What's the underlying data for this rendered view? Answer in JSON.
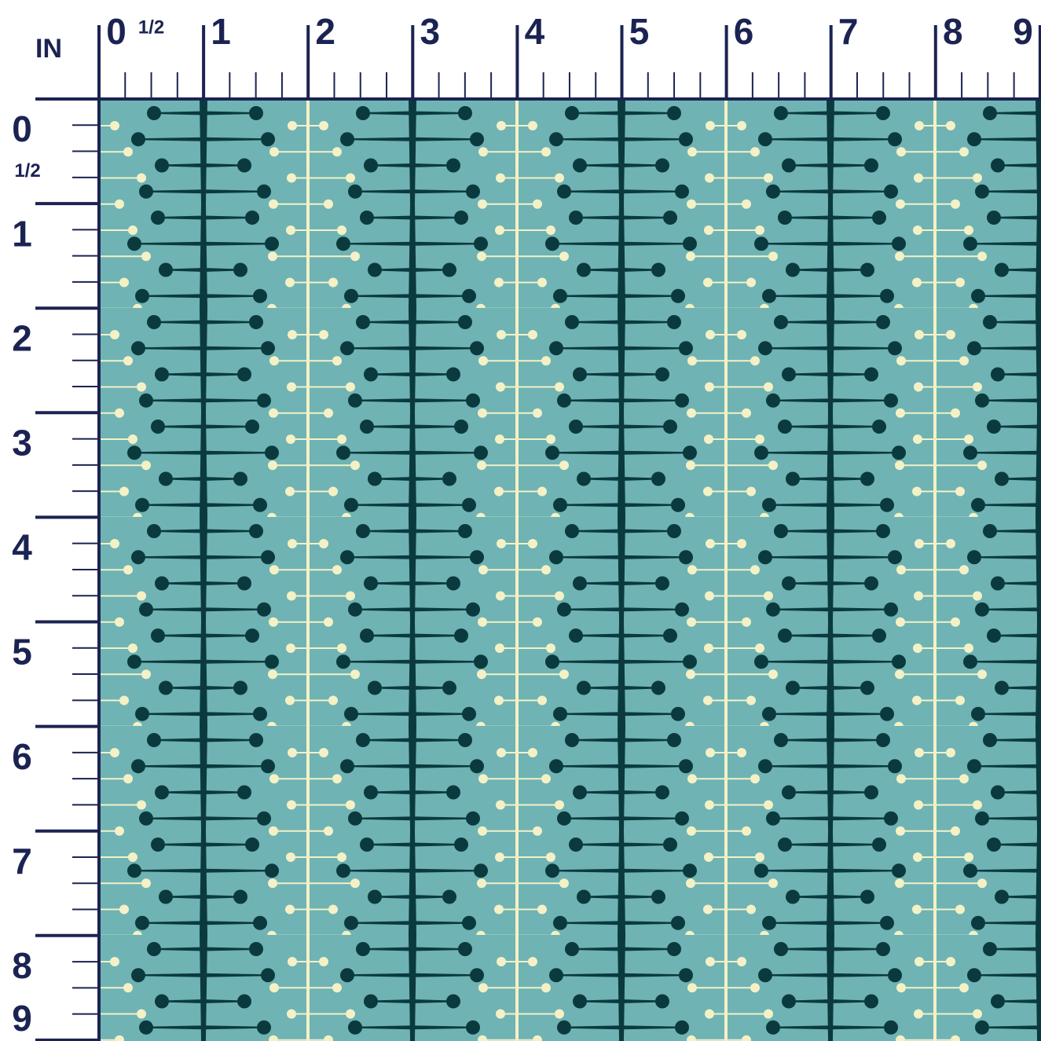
{
  "unit": "IN",
  "top_ruler": {
    "labels": [
      "0",
      "1/2",
      "1",
      "2",
      "3",
      "4",
      "5",
      "6",
      "7",
      "8",
      "9"
    ]
  },
  "left_ruler": {
    "labels": [
      "0",
      "1/2",
      "1",
      "2",
      "3",
      "4",
      "5",
      "6",
      "7",
      "8",
      "9"
    ]
  }
}
